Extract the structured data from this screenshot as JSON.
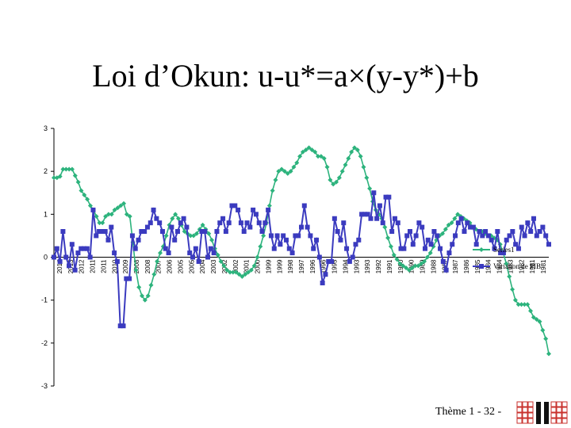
{
  "slide": {
    "title": "Loi d’Okun: u-u*=a×(y-y*)+b",
    "footer": "Thème 1 - 32 -"
  },
  "colors": {
    "green": "#2db37d",
    "blue": "#3b3bbf",
    "logo_red": "#c8322d"
  },
  "logo": {
    "icon": "university-logo-icon"
  },
  "chart_data": {
    "type": "line",
    "title": "",
    "xlabel": "",
    "ylabel": "",
    "ylim": [
      -3,
      3
    ],
    "yticks": [
      3,
      2,
      1,
      0,
      -1,
      -2,
      -3
    ],
    "ytick_labels": [
      "3",
      "2",
      "1",
      "0",
      "-1",
      "-2",
      "-3"
    ],
    "x_tick_labels": [
      "2014",
      "2013",
      "2012",
      "2011",
      "2011",
      "2010",
      "2009",
      "2008",
      "2008",
      "2007",
      "2006",
      "2005",
      "2005",
      "2004",
      "2003",
      "2002",
      "2002",
      "2001",
      "2000",
      "1999",
      "1999",
      "1998",
      "1997",
      "1996",
      "1996",
      "1995",
      "1994",
      "1993",
      "1993",
      "1992",
      "1991",
      "1990",
      "1990",
      "1989",
      "1988",
      "1987",
      "1987",
      "1986",
      "1985",
      "1984",
      "1984",
      "1983",
      "1982",
      "1981",
      "1981"
    ],
    "legend": [
      "Series1",
      "Variation de PIB"
    ],
    "legend_position": "right",
    "series": [
      {
        "name": "Series1",
        "values": [
          1.85,
          1.85,
          1.88,
          2.05,
          2.05,
          2.05,
          2.05,
          1.9,
          1.75,
          1.55,
          1.45,
          1.35,
          1.2,
          1.1,
          0.95,
          0.8,
          0.8,
          0.95,
          1.0,
          1.0,
          1.1,
          1.15,
          1.2,
          1.25,
          1.0,
          0.95,
          0.35,
          -0.3,
          -0.7,
          -0.9,
          -1.0,
          -0.9,
          -0.65,
          -0.4,
          -0.1,
          0.1,
          0.25,
          0.5,
          0.75,
          0.9,
          1.0,
          0.9,
          0.75,
          0.6,
          0.55,
          0.5,
          0.5,
          0.55,
          0.65,
          0.75,
          0.65,
          0.55,
          0.4,
          0.2,
          0.05,
          -0.1,
          -0.2,
          -0.3,
          -0.35,
          -0.35,
          -0.35,
          -0.4,
          -0.45,
          -0.4,
          -0.35,
          -0.3,
          -0.2,
          0.0,
          0.25,
          0.5,
          0.8,
          1.2,
          1.55,
          1.8,
          2.0,
          2.05,
          2.0,
          1.95,
          2.0,
          2.1,
          2.2,
          2.35,
          2.45,
          2.5,
          2.55,
          2.5,
          2.45,
          2.35,
          2.35,
          2.3,
          2.1,
          1.8,
          1.7,
          1.75,
          1.85,
          2.0,
          2.15,
          2.3,
          2.45,
          2.55,
          2.5,
          2.35,
          2.1,
          1.85,
          1.6,
          1.3,
          1.1,
          1.0,
          0.9,
          0.7,
          0.45,
          0.25,
          0.05,
          -0.05,
          -0.15,
          -0.2,
          -0.25,
          -0.3,
          -0.25,
          -0.2,
          -0.2,
          -0.15,
          -0.1,
          0.0,
          0.1,
          0.25,
          0.4,
          0.5,
          0.55,
          0.65,
          0.75,
          0.8,
          0.9,
          1.0,
          0.95,
          0.9,
          0.85,
          0.8,
          0.7,
          0.65,
          0.6,
          0.6,
          0.55,
          0.5,
          0.5,
          0.45,
          0.4,
          0.3,
          0.1,
          -0.15,
          -0.45,
          -0.75,
          -1.0,
          -1.1,
          -1.1,
          -1.1,
          -1.1,
          -1.25,
          -1.4,
          -1.45,
          -1.5,
          -1.7,
          -1.9,
          -2.25
        ]
      },
      {
        "name": "Variation de PIB",
        "values": [
          0.0,
          0.2,
          -0.1,
          0.6,
          0.0,
          -0.2,
          0.3,
          -0.3,
          0.1,
          0.2,
          0.2,
          0.2,
          0.0,
          1.1,
          0.5,
          0.6,
          0.6,
          0.6,
          0.4,
          0.7,
          0.1,
          -0.1,
          -1.6,
          -1.6,
          -0.5,
          -0.5,
          0.5,
          0.2,
          0.4,
          0.6,
          0.6,
          0.7,
          0.8,
          1.1,
          0.9,
          0.8,
          0.6,
          0.2,
          0.1,
          0.7,
          0.4,
          0.6,
          0.8,
          0.9,
          0.7,
          0.1,
          0.0,
          0.2,
          -0.1,
          0.6,
          0.6,
          0.0,
          0.2,
          0.1,
          0.6,
          0.8,
          0.9,
          0.6,
          0.8,
          1.2,
          1.2,
          1.1,
          0.8,
          0.6,
          0.8,
          0.7,
          1.1,
          1.0,
          0.8,
          0.6,
          0.8,
          1.1,
          0.5,
          0.2,
          0.5,
          0.3,
          0.5,
          0.4,
          0.2,
          0.1,
          0.5,
          0.5,
          0.7,
          1.2,
          0.7,
          0.5,
          0.2,
          0.4,
          0.0,
          -0.6,
          -0.4,
          -0.1,
          -0.1,
          0.9,
          0.6,
          0.4,
          0.8,
          0.2,
          -0.1,
          0.0,
          0.3,
          0.4,
          1.0,
          1.0,
          1.0,
          0.9,
          1.5,
          0.9,
          1.2,
          0.8,
          1.4,
          1.4,
          0.6,
          0.9,
          0.8,
          0.2,
          0.2,
          0.5,
          0.6,
          0.3,
          0.5,
          0.8,
          0.7,
          0.2,
          0.4,
          0.3,
          0.6,
          0.5,
          0.2,
          -0.1,
          -0.3,
          0.1,
          0.3,
          0.5,
          0.8,
          0.9,
          0.6,
          0.8,
          0.7,
          0.7,
          0.3,
          0.6,
          0.5,
          0.6,
          0.5,
          0.4,
          0.2,
          0.6,
          0.1,
          0.1,
          0.4,
          0.5,
          0.6,
          0.3,
          0.2,
          0.7,
          0.5,
          0.8,
          0.6,
          0.9,
          0.5,
          0.6,
          0.7,
          0.5,
          0.3
        ]
      }
    ]
  }
}
